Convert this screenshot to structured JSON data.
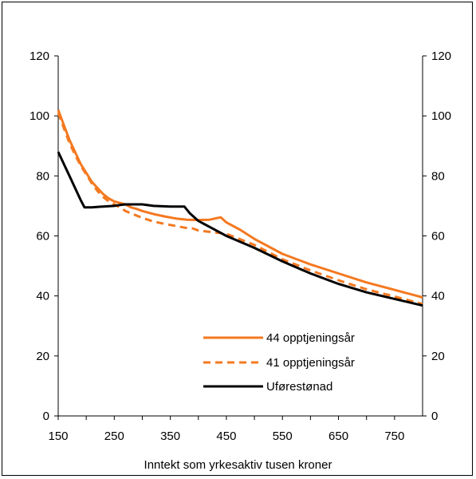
{
  "chart_data": {
    "type": "line",
    "title": "",
    "xlabel": "Inntekt som yrkesaktiv tusen kroner",
    "ylabel": "",
    "xlim": [
      150,
      800
    ],
    "ylim": [
      0,
      120
    ],
    "x_ticks": [
      150,
      250,
      350,
      450,
      550,
      650,
      750
    ],
    "y_ticks": [
      0,
      20,
      40,
      60,
      80,
      100,
      120
    ],
    "secondary_y_axis": true,
    "grid": false,
    "legend_position": "bottom-right",
    "series": [
      {
        "name": "44 opptjeningsår",
        "color": "#f47920",
        "style": "solid",
        "points": [
          [
            150,
            102
          ],
          [
            160,
            97
          ],
          [
            170,
            92
          ],
          [
            180,
            88
          ],
          [
            190,
            84
          ],
          [
            200,
            81
          ],
          [
            210,
            78
          ],
          [
            220,
            76
          ],
          [
            230,
            74
          ],
          [
            240,
            72.5
          ],
          [
            250,
            71.5
          ],
          [
            260,
            71
          ],
          [
            270,
            70.5
          ],
          [
            280,
            69.5
          ],
          [
            290,
            69
          ],
          [
            300,
            68.3
          ],
          [
            320,
            67.3
          ],
          [
            340,
            66.5
          ],
          [
            360,
            65.8
          ],
          [
            380,
            65.4
          ],
          [
            400,
            65.3
          ],
          [
            420,
            65.4
          ],
          [
            440,
            66.2
          ],
          [
            450,
            64.5
          ],
          [
            475,
            62
          ],
          [
            500,
            59
          ],
          [
            550,
            54
          ],
          [
            600,
            50.5
          ],
          [
            650,
            47.5
          ],
          [
            700,
            44.5
          ],
          [
            750,
            42
          ],
          [
            800,
            39.5
          ]
        ]
      },
      {
        "name": "41 opptjeningsår",
        "color": "#f47920",
        "style": "dashed",
        "points": [
          [
            150,
            101
          ],
          [
            160,
            96
          ],
          [
            170,
            91
          ],
          [
            180,
            87
          ],
          [
            190,
            83.5
          ],
          [
            200,
            80.5
          ],
          [
            210,
            77.5
          ],
          [
            220,
            75
          ],
          [
            230,
            73
          ],
          [
            240,
            71.5
          ],
          [
            250,
            70.5
          ],
          [
            260,
            69.5
          ],
          [
            270,
            68.3
          ],
          [
            280,
            67.5
          ],
          [
            300,
            66
          ],
          [
            320,
            64.8
          ],
          [
            340,
            64
          ],
          [
            360,
            63.3
          ],
          [
            380,
            62.6
          ],
          [
            390,
            62.5
          ],
          [
            400,
            61.8
          ],
          [
            450,
            60.7
          ],
          [
            500,
            57
          ],
          [
            550,
            52.2
          ],
          [
            600,
            48.5
          ],
          [
            650,
            45.2
          ],
          [
            700,
            42.2
          ],
          [
            750,
            39.8
          ],
          [
            800,
            37.3
          ]
        ]
      },
      {
        "name": "Uførestønad",
        "color": "#000000",
        "style": "solid",
        "points": [
          [
            150,
            88
          ],
          [
            160,
            84
          ],
          [
            170,
            80
          ],
          [
            180,
            76
          ],
          [
            190,
            72
          ],
          [
            197,
            69.5
          ],
          [
            210,
            69.5
          ],
          [
            230,
            69.8
          ],
          [
            250,
            70
          ],
          [
            260,
            70.3
          ],
          [
            270,
            70.5
          ],
          [
            300,
            70.5
          ],
          [
            320,
            70
          ],
          [
            350,
            69.8
          ],
          [
            375,
            69.8
          ],
          [
            385,
            67.5
          ],
          [
            400,
            65
          ],
          [
            425,
            62.5
          ],
          [
            450,
            60
          ],
          [
            500,
            56
          ],
          [
            550,
            51.5
          ],
          [
            600,
            47.5
          ],
          [
            650,
            44
          ],
          [
            700,
            41.2
          ],
          [
            750,
            39
          ],
          [
            800,
            36.8
          ]
        ]
      }
    ]
  }
}
